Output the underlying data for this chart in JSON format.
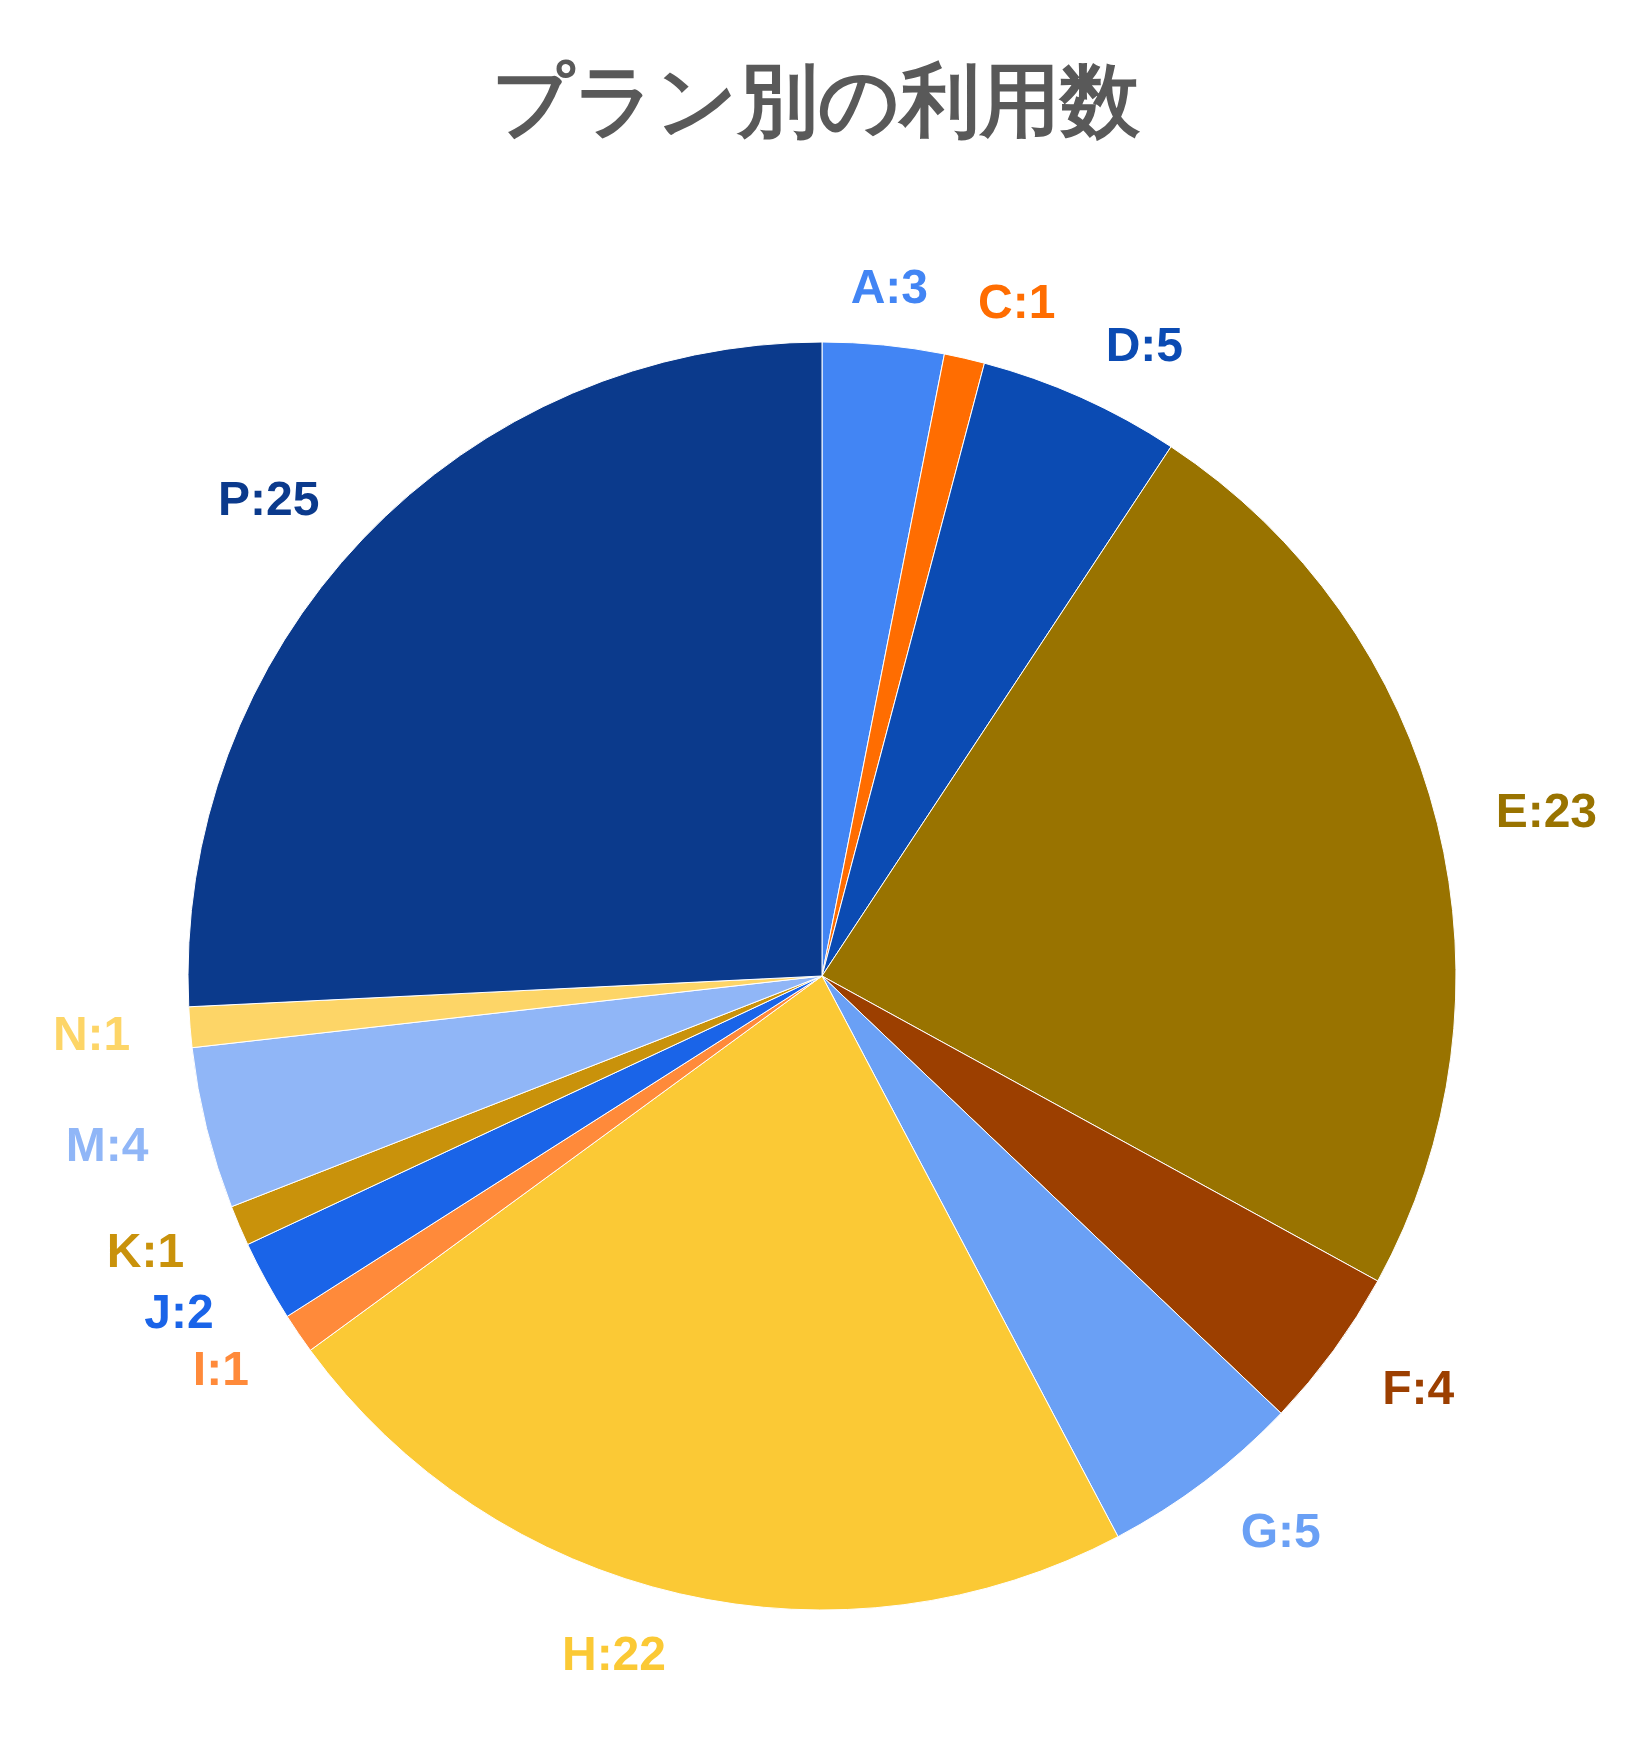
{
  "chart_data": {
    "type": "pie",
    "title": "プラン別の利用数",
    "categories": [
      "A",
      "C",
      "D",
      "E",
      "F",
      "G",
      "H",
      "I",
      "J",
      "K",
      "M",
      "N",
      "P"
    ],
    "values": [
      3,
      1,
      5,
      23,
      4,
      5,
      22,
      1,
      2,
      1,
      4,
      1,
      25
    ],
    "colors": [
      "#4285f4",
      "#ff6d01",
      "#0b4bb3",
      "#997300",
      "#9c3f00",
      "#6aa0f5",
      "#fbc935",
      "#ff8a3a",
      "#1a64e8",
      "#c9920b",
      "#90b6f7",
      "#fdd567",
      "#0b3a8c"
    ],
    "value_labels": [
      ":3",
      ":1",
      ":5",
      ":23",
      ":4",
      ":5",
      ":22",
      ":1",
      ":2",
      ":1",
      ":4",
      ":1",
      ":25"
    ]
  }
}
